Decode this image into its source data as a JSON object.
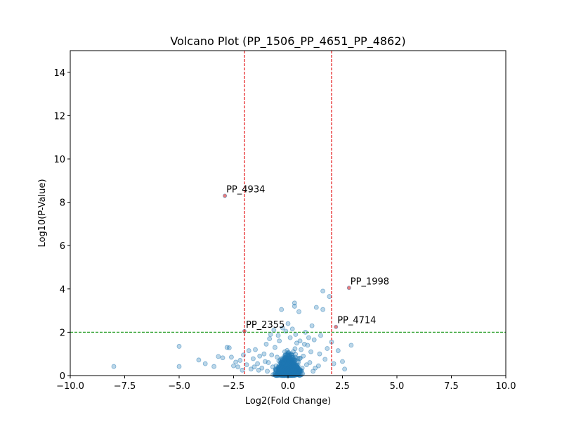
{
  "chart_data": {
    "type": "scatter",
    "title": "Volcano Plot (PP_1506_PP_4651_PP_4862)",
    "xlabel": "Log2(Fold Change)",
    "ylabel": "Log10(P-Value)",
    "xlim": [
      -10,
      10
    ],
    "ylim": [
      0,
      15
    ],
    "xticks": [
      -10,
      -7.5,
      -5,
      -2.5,
      0,
      2.5,
      5,
      7.5,
      10
    ],
    "xtick_labels": [
      "−10.0",
      "−7.5",
      "−5.0",
      "−2.5",
      "0.0",
      "2.5",
      "5.0",
      "7.5",
      "10.0"
    ],
    "yticks": [
      0,
      2,
      4,
      6,
      8,
      10,
      12,
      14
    ],
    "ytick_labels": [
      "0",
      "2",
      "4",
      "6",
      "8",
      "10",
      "12",
      "14"
    ],
    "grid": false,
    "point_color": "#1f77b4",
    "highlight_color": "#d62728",
    "threshold_lines": {
      "vertical": [
        -2,
        2
      ],
      "vertical_color": "#e41a1c",
      "horizontal": [
        2
      ],
      "horizontal_color": "#2ca02c"
    },
    "points": [
      {
        "x": -8.0,
        "y": 0.42
      },
      {
        "x": -5.0,
        "y": 1.35
      },
      {
        "x": -5.0,
        "y": 0.42
      },
      {
        "x": -4.1,
        "y": 0.72
      },
      {
        "x": -3.8,
        "y": 0.55
      },
      {
        "x": -3.4,
        "y": 0.42
      },
      {
        "x": -3.2,
        "y": 0.88
      },
      {
        "x": -3.0,
        "y": 0.82
      },
      {
        "x": -2.8,
        "y": 1.3
      },
      {
        "x": -2.7,
        "y": 1.28
      },
      {
        "x": -2.6,
        "y": 0.85
      },
      {
        "x": -2.5,
        "y": 0.45
      },
      {
        "x": -2.4,
        "y": 0.62
      },
      {
        "x": -2.3,
        "y": 0.4
      },
      {
        "x": -2.2,
        "y": 0.7
      },
      {
        "x": -2.1,
        "y": 0.25
      },
      {
        "x": -2.05,
        "y": 0.95
      },
      {
        "x": -1.9,
        "y": 0.5
      },
      {
        "x": -1.8,
        "y": 1.15
      },
      {
        "x": -1.7,
        "y": 0.3
      },
      {
        "x": -1.6,
        "y": 0.78
      },
      {
        "x": -1.5,
        "y": 1.2
      },
      {
        "x": -1.4,
        "y": 0.55
      },
      {
        "x": -1.3,
        "y": 0.9
      },
      {
        "x": -1.2,
        "y": 0.35
      },
      {
        "x": -1.1,
        "y": 1.0
      },
      {
        "x": -1.0,
        "y": 1.45
      },
      {
        "x": -0.9,
        "y": 0.6
      },
      {
        "x": -0.8,
        "y": 1.9
      },
      {
        "x": -0.7,
        "y": 0.4
      },
      {
        "x": -0.6,
        "y": 1.3
      },
      {
        "x": -0.5,
        "y": 0.85
      },
      {
        "x": -0.4,
        "y": 1.6
      },
      {
        "x": -0.3,
        "y": 3.05
      },
      {
        "x": -0.25,
        "y": 2.2
      },
      {
        "x": -0.2,
        "y": 0.7
      },
      {
        "x": -0.1,
        "y": 2.05
      },
      {
        "x": 0.0,
        "y": 2.4
      },
      {
        "x": 0.1,
        "y": 1.75
      },
      {
        "x": 0.2,
        "y": 2.15
      },
      {
        "x": 0.3,
        "y": 3.35
      },
      {
        "x": 0.3,
        "y": 3.2
      },
      {
        "x": 0.4,
        "y": 1.5
      },
      {
        "x": 0.5,
        "y": 2.95
      },
      {
        "x": 0.6,
        "y": 1.2
      },
      {
        "x": 0.7,
        "y": 0.9
      },
      {
        "x": 0.8,
        "y": 2.0
      },
      {
        "x": 0.9,
        "y": 1.4
      },
      {
        "x": 1.0,
        "y": 0.6
      },
      {
        "x": 1.1,
        "y": 2.3
      },
      {
        "x": 1.2,
        "y": 1.65
      },
      {
        "x": 1.3,
        "y": 3.15
      },
      {
        "x": 1.4,
        "y": 0.45
      },
      {
        "x": 1.5,
        "y": 1.85
      },
      {
        "x": 1.6,
        "y": 3.05
      },
      {
        "x": 1.6,
        "y": 3.9
      },
      {
        "x": 1.7,
        "y": 0.75
      },
      {
        "x": 1.8,
        "y": 1.25
      },
      {
        "x": 1.9,
        "y": 3.65
      },
      {
        "x": 2.0,
        "y": 1.55
      },
      {
        "x": 2.1,
        "y": 0.55
      },
      {
        "x": 2.3,
        "y": 1.15
      },
      {
        "x": 2.5,
        "y": 0.65
      },
      {
        "x": 2.6,
        "y": 0.3
      },
      {
        "x": 2.9,
        "y": 1.4
      },
      {
        "x": 0.15,
        "y": 1.0
      },
      {
        "x": -0.15,
        "y": 1.1
      },
      {
        "x": 0.05,
        "y": 0.3
      },
      {
        "x": 0.25,
        "y": 0.55
      },
      {
        "x": -0.35,
        "y": 0.25
      },
      {
        "x": 0.45,
        "y": 0.8
      },
      {
        "x": -0.55,
        "y": 0.45
      },
      {
        "x": 0.65,
        "y": 0.35
      },
      {
        "x": -0.75,
        "y": 0.95
      },
      {
        "x": 0.85,
        "y": 0.5
      },
      {
        "x": 1.05,
        "y": 1.1
      },
      {
        "x": -1.05,
        "y": 0.65
      },
      {
        "x": 1.25,
        "y": 0.35
      },
      {
        "x": -1.35,
        "y": 0.25
      },
      {
        "x": 1.45,
        "y": 1.0
      },
      {
        "x": -1.55,
        "y": 0.4
      },
      {
        "x": 0.35,
        "y": 1.9
      },
      {
        "x": -0.45,
        "y": 1.85
      },
      {
        "x": 0.55,
        "y": 1.6
      },
      {
        "x": -0.65,
        "y": 2.1
      },
      {
        "x": 0.75,
        "y": 1.45
      },
      {
        "x": -0.85,
        "y": 1.7
      },
      {
        "x": 0.95,
        "y": 1.75
      },
      {
        "x": -0.95,
        "y": 0.2
      },
      {
        "x": 1.15,
        "y": 0.2
      }
    ],
    "dense_cluster": {
      "center_x": 0.0,
      "spread_x": 0.6,
      "max_y": 1.5,
      "count": 900
    },
    "highlighted": [
      {
        "x": -2.9,
        "y": 8.3,
        "label": "PP_4934"
      },
      {
        "x": 2.8,
        "y": 4.05,
        "label": "PP_1998"
      },
      {
        "x": 2.2,
        "y": 2.25,
        "label": "PP_4714"
      },
      {
        "x": -2.0,
        "y": 2.05,
        "label": "PP_2355"
      }
    ]
  }
}
